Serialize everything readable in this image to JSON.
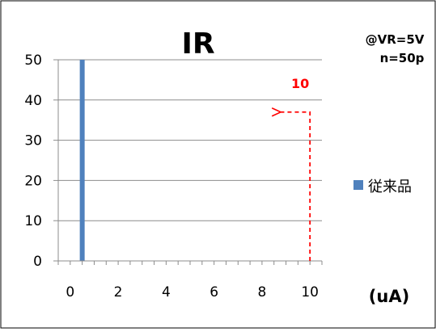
{
  "chart_data": {
    "type": "bar",
    "title": "IR",
    "conditions": [
      "@VR=5V",
      "n=50p"
    ],
    "x_unit": "(uA)",
    "x_ticks": [
      0,
      2,
      4,
      6,
      8,
      10
    ],
    "xlim": [
      -0.5,
      10.5
    ],
    "y_ticks": [
      0,
      10,
      20,
      30,
      40,
      50
    ],
    "ylim": [
      0,
      50
    ],
    "grid": true,
    "legend_position": "right",
    "series": [
      {
        "name": "従来品",
        "x": [
          0.5
        ],
        "values": [
          50
        ],
        "color": "#4f81bd"
      }
    ],
    "annotation": {
      "label": "10",
      "color": "#ff0000",
      "x": 10,
      "y_level": 37,
      "style": "dashed-arrow"
    }
  }
}
